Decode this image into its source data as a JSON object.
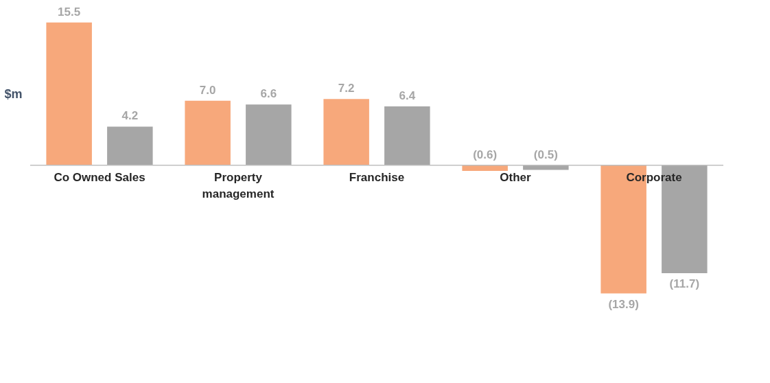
{
  "chart_data": {
    "type": "bar",
    "ylabel": "$m",
    "categories": [
      "Co Owned Sales",
      "Property management",
      "Franchise",
      "Other",
      "Corporate"
    ],
    "series": [
      {
        "color": "#f7a87b",
        "values": [
          15.5,
          7.0,
          7.2,
          -0.6,
          -13.9
        ],
        "value_labels": [
          "15.5",
          "7.0",
          "7.2",
          "(0.6)",
          "(13.9)"
        ]
      },
      {
        "color": "#a6a6a6",
        "values": [
          4.2,
          6.6,
          6.4,
          -0.5,
          -11.7
        ],
        "value_labels": [
          "4.2",
          "6.6",
          "6.4",
          "(0.5)",
          "(11.7)"
        ]
      }
    ],
    "grid": false
  }
}
